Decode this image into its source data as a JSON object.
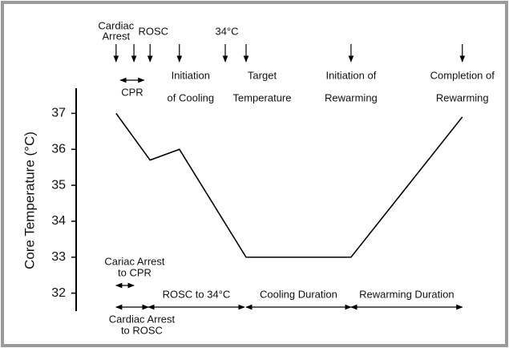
{
  "chart_data": {
    "type": "line",
    "y_label": "Core Temperature (°C)",
    "x": [
      9.4,
      17.4,
      24.3,
      40,
      64.7,
      90.9
    ],
    "values": [
      37,
      35.7,
      36,
      33,
      33,
      36.9
    ],
    "color": "#000000",
    "xlim": [
      0,
      100
    ],
    "ylim": [
      31.5,
      37.7
    ],
    "yticks": [
      32,
      33,
      34,
      35,
      36,
      37
    ],
    "events": [
      {
        "label": [
          "Cardiac",
          "Arrest"
        ],
        "x": 9.4
      },
      {
        "x": 13.6
      },
      {
        "label": [
          "ROSC"
        ],
        "x": 17.4
      },
      {
        "label": [
          "Initiation",
          "of Cooling"
        ],
        "x": 24.3
      },
      {
        "label": [
          "34°C"
        ],
        "x": 35.1
      },
      {
        "label": [
          "Target",
          "Temperature"
        ],
        "x": 40
      },
      {
        "label": [
          "Initiation of",
          "Rewarming"
        ],
        "x": 64.7
      },
      {
        "label": [
          "Completion of",
          "Rewarming"
        ],
        "x": 90.9
      }
    ],
    "intervals": [
      {
        "label": [
          "CPR"
        ],
        "start": 10.4,
        "end": 16.0
      },
      {
        "label": [
          "Cariac Arrest",
          "to CPR"
        ],
        "start": 9.4,
        "end": 13.6
      },
      {
        "label": [
          "Cardiac Arrest",
          "to ROSC"
        ],
        "start": 9.4,
        "end": 17.0
      },
      {
        "label": [
          "ROSC to 34°C"
        ],
        "start": 17.0,
        "end": 39.6
      },
      {
        "label": [
          "Cooling Duration"
        ],
        "start": 40,
        "end": 64.7
      },
      {
        "label": [
          "Rewarming Duration"
        ],
        "start": 64.7,
        "end": 90.9
      }
    ]
  }
}
